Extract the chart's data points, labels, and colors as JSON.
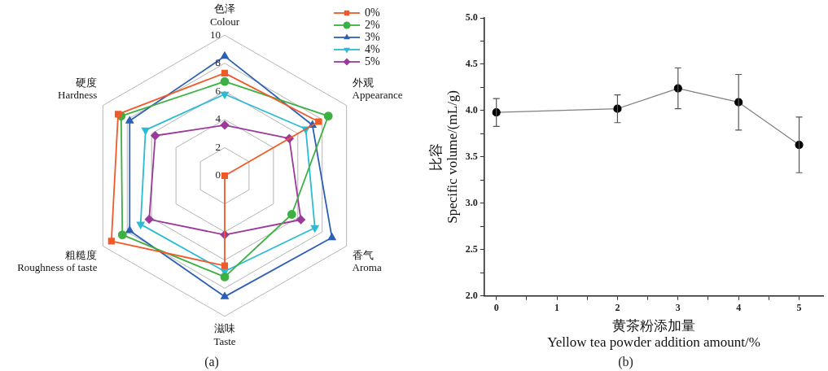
{
  "chart_data": [
    {
      "type": "radar",
      "categories": [
        "色泽\nColour",
        "外观\nAppearance",
        "香气\nAroma",
        "滋味\nTaste",
        "粗糙度\nRoughness of taste",
        "硬度\nHardness"
      ],
      "series": [
        {
          "name": "0%",
          "color": "#f05a28",
          "marker": "square",
          "values": [
            7.3,
            7.7,
            0,
            6.4,
            9.3,
            8.75
          ]
        },
        {
          "name": "2%",
          "color": "#3cb043",
          "marker": "circle",
          "values": [
            6.7,
            8.5,
            5.5,
            7.2,
            8.4,
            8.5
          ]
        },
        {
          "name": "3%",
          "color": "#2d5fb5",
          "marker": "triangle",
          "values": [
            8.5,
            7.2,
            8.8,
            8.6,
            7.8,
            7.8
          ]
        },
        {
          "name": "4%",
          "color": "#2bbcd4",
          "marker": "triangle-down",
          "values": [
            5.8,
            6.65,
            7.4,
            6.8,
            6.9,
            6.5
          ]
        },
        {
          "name": "5%",
          "color": "#9b3a9b",
          "marker": "diamond",
          "values": [
            3.6,
            5.3,
            6.25,
            4.2,
            6.2,
            5.7
          ]
        }
      ],
      "ylim": [
        0,
        10
      ],
      "yticks": [
        0,
        2,
        4,
        6,
        8,
        10
      ],
      "grid": true,
      "legend": "top right",
      "annotations": [
        "(a)"
      ]
    },
    {
      "type": "line",
      "x": [
        0,
        2,
        3,
        4,
        5
      ],
      "series": [
        {
          "color": "#808080",
          "values": [
            3.98,
            4.02,
            4.24,
            4.09,
            3.63
          ],
          "errors": [
            0.15,
            0.15,
            0.22,
            0.3,
            0.3
          ]
        }
      ],
      "marker": "circle",
      "xlabel": "黄茶粉添加量\nYellow tea powder addition amount/%",
      "ylabel": "比容\nSpecific volume/(mL/g)",
      "xlim": [
        -0.2,
        5.4
      ],
      "xticks": [
        0,
        {
          "value": 0.5,
          "label": null
        },
        1,
        {
          "value": 1.5,
          "label": null
        },
        2,
        {
          "value": 2.5,
          "label": null
        },
        3,
        {
          "value": 3.5,
          "label": null
        },
        4,
        {
          "value": 4.5,
          "label": null
        },
        5
      ],
      "ylim": [
        2,
        5
      ],
      "yticks": [
        {
          "value": 2,
          "label": "2.0"
        },
        {
          "value": 2.25,
          "label": null
        },
        {
          "value": 2.5,
          "label": "2.5"
        },
        {
          "value": 2.75,
          "label": null
        },
        {
          "value": 3,
          "label": "3.0"
        },
        {
          "value": 3.25,
          "label": null
        },
        {
          "value": 3.5,
          "label": "3.5"
        },
        {
          "value": 3.75,
          "label": null
        },
        {
          "value": 4,
          "label": "4.0"
        },
        {
          "value": 4.25,
          "label": null
        },
        {
          "value": 4.5,
          "label": "4.5"
        },
        {
          "value": 4.75,
          "label": null
        },
        {
          "value": 5,
          "label": "5.0"
        }
      ],
      "grid": false,
      "annotations": [
        "(b)"
      ]
    }
  ]
}
